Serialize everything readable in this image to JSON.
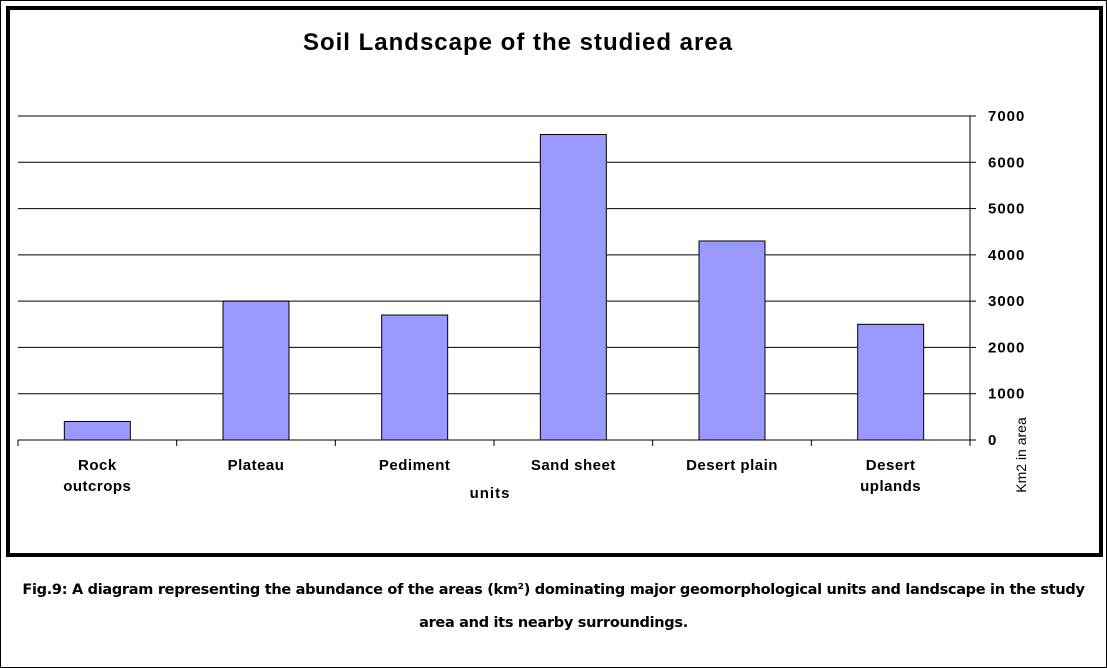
{
  "chart_data": {
    "type": "bar",
    "title": "Soil Landscape of the studied area",
    "x_label": "units",
    "y_label": "Km2 in area",
    "categories": [
      "Rock outcrops",
      "Plateau",
      "Pediment",
      "Sand sheet",
      "Desert plain",
      "Desert uplands"
    ],
    "values": [
      400,
      3000,
      2700,
      6600,
      4300,
      2500
    ],
    "color": "#9999ff",
    "ylim": [
      0,
      7000
    ],
    "yticks": [
      0,
      1000,
      2000,
      3000,
      4000,
      5000,
      6000,
      7000
    ],
    "grid": true,
    "y_axis_side": "right"
  },
  "caption": "Fig.9: A diagram representing the abundance of the areas (km²) dominating major geomorphological units and landscape in the study area and its nearby surroundings."
}
